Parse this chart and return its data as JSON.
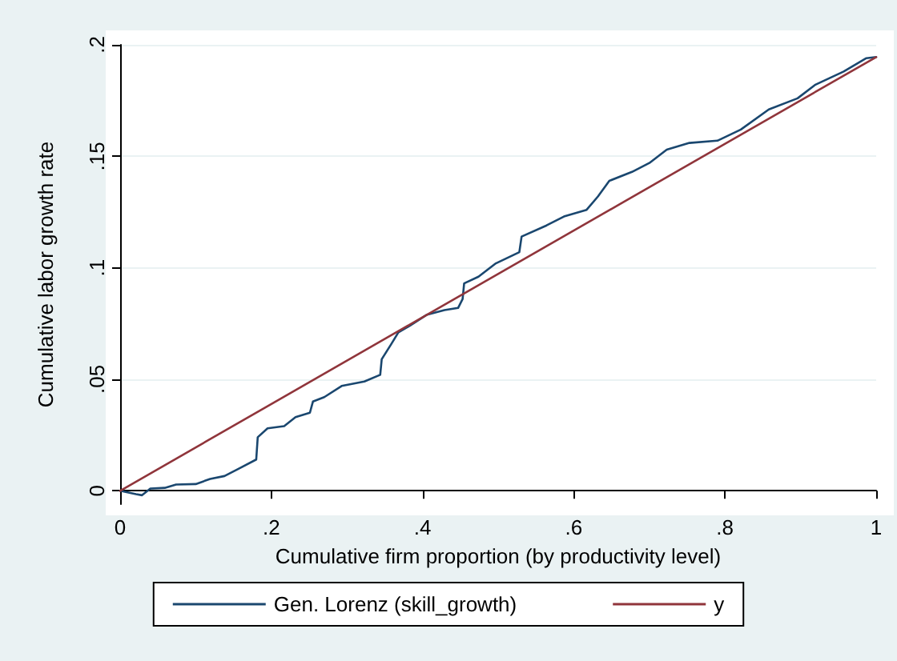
{
  "chart_data": {
    "type": "line",
    "xlabel": "Cumulative firm proportion (by productivity level)",
    "ylabel": "Cumulative labor growth rate",
    "xlim": [
      0,
      1
    ],
    "xticks": [
      {
        "value": 0,
        "label": "0"
      },
      {
        "value": 0.2,
        "label": ".2"
      },
      {
        "value": 0.4,
        "label": ".4"
      },
      {
        "value": 0.6,
        "label": ".6"
      },
      {
        "value": 0.8,
        "label": ".8"
      },
      {
        "value": 1,
        "label": "1"
      }
    ],
    "ylim": [
      -0.006,
      0.2
    ],
    "yticks": [
      {
        "value": 0,
        "label": "0"
      },
      {
        "value": 0.05,
        "label": ".05"
      },
      {
        "value": 0.1,
        "label": ".1"
      },
      {
        "value": 0.15,
        "label": ".15"
      },
      {
        "value": 0.2,
        "label": ".2"
      }
    ],
    "grid": "y",
    "legend": "bottom",
    "marker": "none",
    "line_style": "solid",
    "series": [
      {
        "name": "Gen. Lorenz (skill_growth)",
        "color": "#1a476f",
        "x": [
          0,
          0.021,
          0.029,
          0.04,
          0.059,
          0.074,
          0.1,
          0.119,
          0.138,
          0.157,
          0.18,
          0.182,
          0.195,
          0.217,
          0.232,
          0.251,
          0.255,
          0.27,
          0.293,
          0.323,
          0.344,
          0.346,
          0.359,
          0.368,
          0.383,
          0.406,
          0.429,
          0.447,
          0.453,
          0.455,
          0.474,
          0.497,
          0.528,
          0.531,
          0.564,
          0.587,
          0.617,
          0.632,
          0.647,
          0.677,
          0.7,
          0.723,
          0.753,
          0.79,
          0.821,
          0.858,
          0.896,
          0.919,
          0.957,
          0.987,
          1
        ],
        "values": [
          0,
          -0.0015,
          -0.002,
          0.001,
          0.0013,
          0.0028,
          0.003,
          0.0053,
          0.0066,
          0.0099,
          0.014,
          0.024,
          0.028,
          0.029,
          0.033,
          0.035,
          0.04,
          0.042,
          0.047,
          0.049,
          0.052,
          0.059,
          0.066,
          0.071,
          0.074,
          0.079,
          0.081,
          0.082,
          0.086,
          0.093,
          0.096,
          0.102,
          0.107,
          0.114,
          0.119,
          0.123,
          0.126,
          0.132,
          0.139,
          0.143,
          0.147,
          0.153,
          0.156,
          0.157,
          0.162,
          0.171,
          0.176,
          0.182,
          0.188,
          0.194,
          0.1945
        ]
      },
      {
        "name": "y",
        "color": "#90353b",
        "x": [
          0,
          1
        ],
        "values": [
          0,
          0.1945
        ]
      }
    ]
  }
}
